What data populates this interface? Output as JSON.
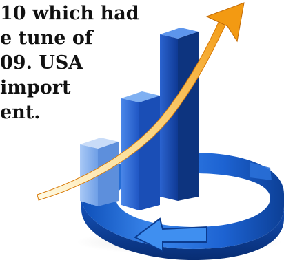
{
  "text_fragment": {
    "lines": [
      "10 which had",
      "e tune of",
      "09. USA",
      " import",
      "ent."
    ]
  },
  "illustration": {
    "subject": "growth-bar-chart-with-rising-arrow",
    "bar_levels": [
      0.35,
      0.62,
      0.9
    ],
    "colors": {
      "bar_light": "#8fb8f0",
      "bar_mid": "#2f6fe0",
      "bar_dark": "#123c9a",
      "ring": "#1f67d6",
      "ring_shadow": "#0c3f96",
      "arrow_start": "#fff5c8",
      "arrow_end": "#f6a21c"
    }
  }
}
